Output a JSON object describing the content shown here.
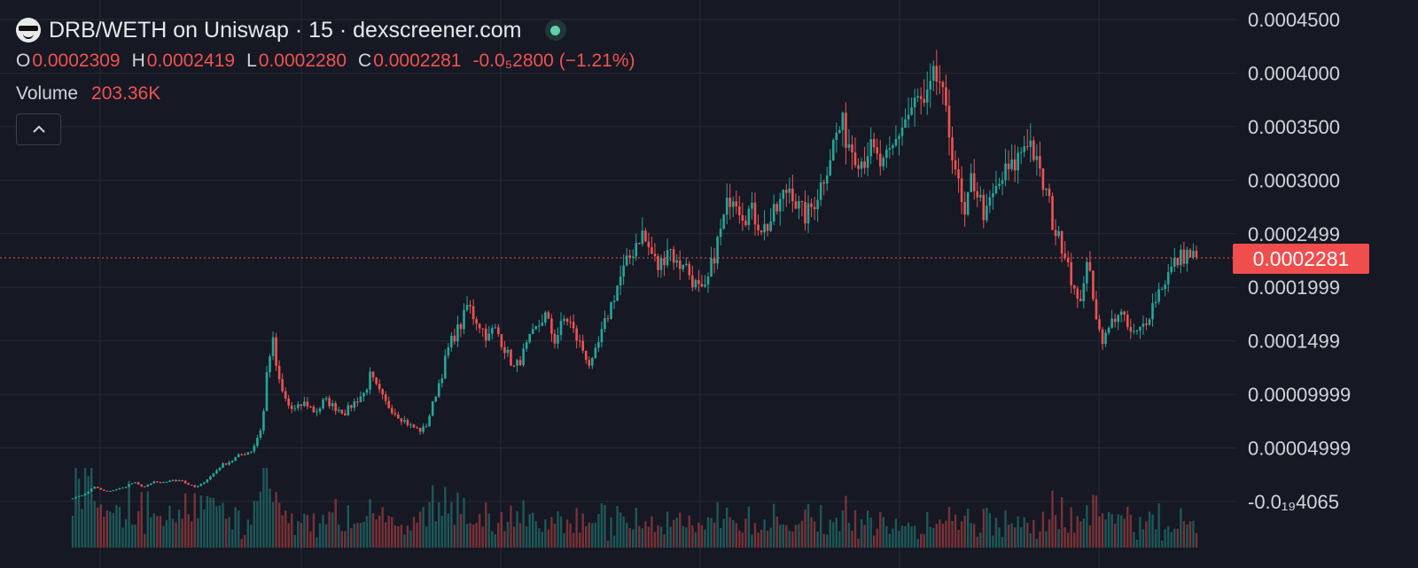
{
  "header": {
    "title": "DRB/WETH on Uniswap · 15 · dexscreener.com",
    "logo_icon": "sunglasses-smiley-icon",
    "status_icon": "green-dot-icon"
  },
  "ohlc": {
    "open_label": "O",
    "open": "0.0002309",
    "high_label": "H",
    "high": "0.0002419",
    "low_label": "L",
    "low": "0.0002280",
    "close_label": "C",
    "close": "0.0002281",
    "change": "-0.0₅2800 (−1.21%)"
  },
  "volume": {
    "label": "Volume",
    "value": "203.36K"
  },
  "collapse_icon": "chevron-up-icon",
  "last_price_tag": "0.0002281",
  "colors": {
    "background": "#161824",
    "up": "#26a69a",
    "down": "#ef5350",
    "grid": "#262a37",
    "price_line": "#ef5350"
  },
  "chart_data": {
    "type": "candlestick",
    "title": "DRB/WETH on Uniswap · 15 · dexscreener.com",
    "interval": "15",
    "ylim": [
      -2e-05,
      0.00046
    ],
    "y_ticks": [
      "0.0004500",
      "0.0004000",
      "0.0003500",
      "0.0003000",
      "0.0002499",
      "0.0001999",
      "0.0001499",
      "0.00009999",
      "0.00004999",
      "-0.0₁₉4065"
    ],
    "y_tick_values": [
      0.00045,
      0.0004,
      0.00035,
      0.0003,
      0.00025,
      0.0002,
      0.00015,
      0.0001,
      5e-05,
      0
    ],
    "last_price": 0.0002281,
    "close_series": [
      3e-06,
      5e-06,
      6e-06,
      9e-06,
      1.4e-05,
      1.2e-05,
      1e-05,
      9e-06,
      1.1e-05,
      1.2e-05,
      1.3e-05,
      1.6e-05,
      1.8e-05,
      1.5e-05,
      1.4e-05,
      1.6e-05,
      1.9e-05,
      1.7e-05,
      1.8e-05,
      2e-05,
      1.9e-05,
      2.1e-05,
      1.7e-05,
      1.5e-05,
      1.3e-05,
      1.6e-05,
      2e-05,
      2.4e-05,
      2.9e-05,
      3.4e-05,
      3.6e-05,
      3.8e-05,
      4.2e-05,
      4.4e-05,
      4.6e-05,
      4.8e-05,
      6e-05,
      7.2e-05,
      0.00013,
      0.00015,
      0.000115,
      0.0001,
      9e-05,
      8.5e-05,
      8.8e-05,
      9.2e-05,
      9e-05,
      8.4e-05,
      8.6e-05,
      9.5e-05,
      9.2e-05,
      8.8e-05,
      8.6e-05,
      8.3e-05,
      8.8e-05,
      9.3e-05,
      9.8e-05,
      0.000102,
      0.000118,
      0.000108,
      0.0001,
      9.2e-05,
      8.7e-05,
      8.2e-05,
      7.8e-05,
      7.4e-05,
      7e-05,
      6.8e-05,
      6.6e-05,
      7.2e-05,
      8.8e-05,
      0.000105,
      0.00012,
      0.00014,
      0.000152,
      0.00016,
      0.000168,
      0.000185,
      0.000174,
      0.000168,
      0.00016,
      0.000152,
      0.000162,
      0.000156,
      0.000145,
      0.000135,
      0.000125,
      0.00013,
      0.00014,
      0.00015,
      0.000158,
      0.000166,
      0.000175,
      0.000162,
      0.00015,
      0.000162,
      0.000172,
      0.000166,
      0.000154,
      0.000146,
      0.000136,
      0.000125,
      0.00014,
      0.000155,
      0.00017,
      0.000185,
      0.0002,
      0.000212,
      0.000222,
      0.000232,
      0.000245,
      0.00025,
      0.000238,
      0.00023,
      0.000218,
      0.000225,
      0.00024,
      0.00023,
      0.000218,
      0.000226,
      0.000214,
      0.000205,
      0.000198,
      0.000192,
      0.00021,
      0.00023,
      0.000248,
      0.000265,
      0.000285,
      0.00029,
      0.000275,
      0.000268,
      0.000272,
      0.000265,
      0.000258,
      0.000255,
      0.000262,
      0.00027,
      0.00028,
      0.00029,
      0.000296,
      0.000278,
      0.00027,
      0.000266,
      0.000275,
      0.000286,
      0.000298,
      0.000315,
      0.00033,
      0.000345,
      0.00035,
      0.000338,
      0.00033,
      0.000324,
      0.000318,
      0.00033,
      0.000325,
      0.000316,
      0.000312,
      0.00032,
      0.00033,
      0.000345,
      0.000355,
      0.000362,
      0.00037,
      0.000375,
      0.000365,
      0.00038,
      0.000395,
      0.000392,
      0.00036,
      0.00034,
      0.000315,
      0.00028,
      0.00026,
      0.0003,
      0.000295,
      0.000278,
      0.000265,
      0.000282,
      0.00029,
      0.0003,
      0.000308,
      0.00031,
      0.000318,
      0.00033,
      0.00034,
      0.000332,
      0.00031,
      0.000296,
      0.000285,
      0.00026,
      0.000245,
      0.00024,
      0.000225,
      0.0002,
      0.00018,
      0.000208,
      0.00022,
      0.00019,
      0.00016,
      0.00015,
      0.000162,
      0.000172,
      0.000178,
      0.000168,
      0.000158,
      0.000155,
      0.00016,
      0.000168,
      0.000178,
      0.00019,
      0.0002,
      0.000208,
      0.000216,
      0.000224,
      0.000228,
      0.000232,
      0.000229,
      0.0002281
    ]
  }
}
